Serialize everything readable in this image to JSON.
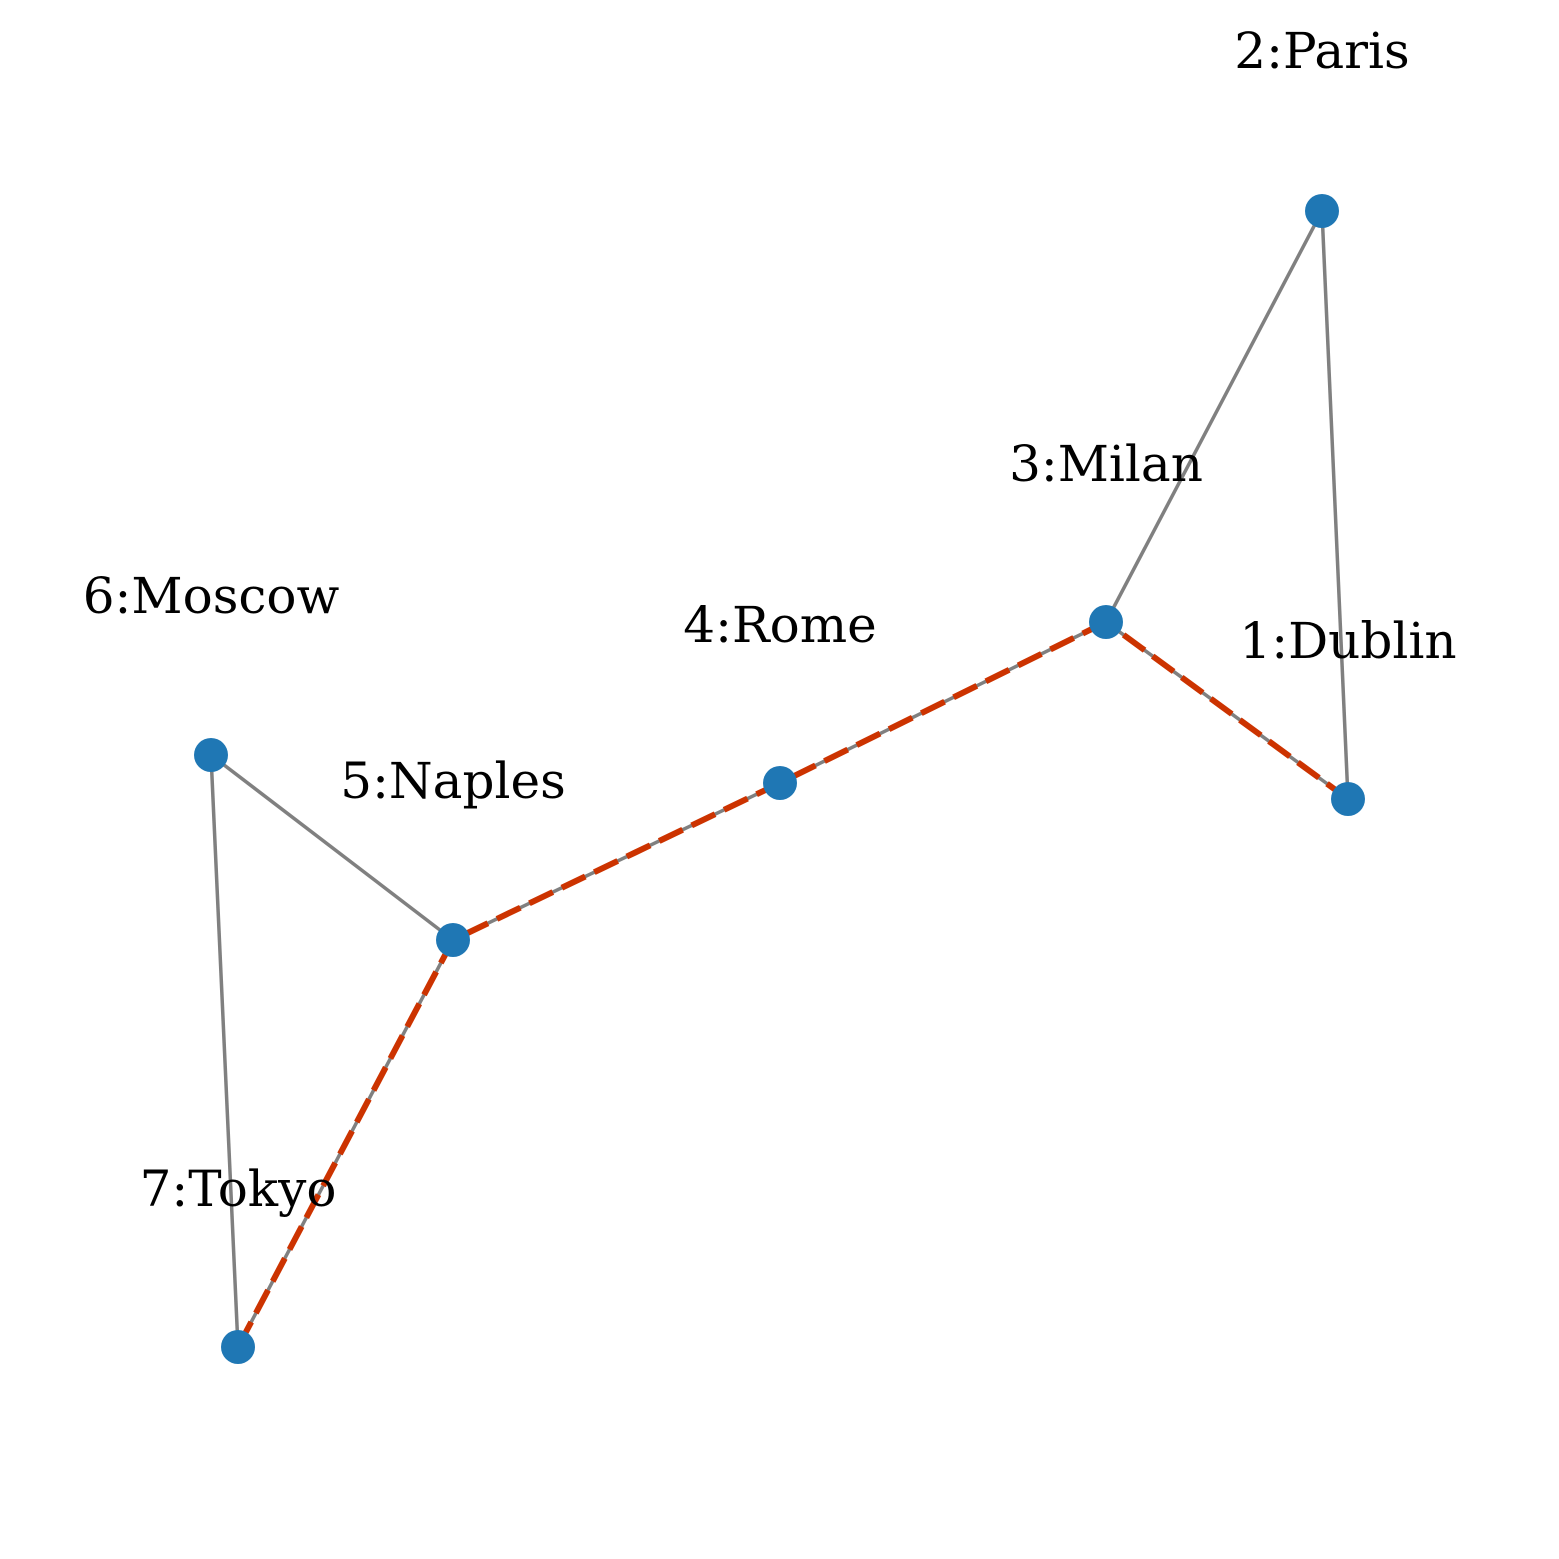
{
  "graph": {
    "colors": {
      "node": "#1f77b4",
      "edge": "#808080",
      "highlight": "#cc3300",
      "label": "#000000",
      "background": "#ffffff"
    },
    "nodes": [
      {
        "id": 1,
        "label": "1:Dublin"
      },
      {
        "id": 2,
        "label": "2:Paris"
      },
      {
        "id": 3,
        "label": "3:Milan"
      },
      {
        "id": 4,
        "label": "4:Rome"
      },
      {
        "id": 5,
        "label": "5:Naples"
      },
      {
        "id": 6,
        "label": "6:Moscow"
      },
      {
        "id": 7,
        "label": "7:Tokyo"
      }
    ],
    "edges": [
      {
        "source": 2,
        "target": 3
      },
      {
        "source": 2,
        "target": 1
      },
      {
        "source": 3,
        "target": 1
      },
      {
        "source": 3,
        "target": 4
      },
      {
        "source": 4,
        "target": 5
      },
      {
        "source": 5,
        "target": 6
      },
      {
        "source": 5,
        "target": 7
      },
      {
        "source": 6,
        "target": 7
      }
    ],
    "highlighted_path": [
      1,
      3,
      4,
      5,
      7
    ]
  }
}
